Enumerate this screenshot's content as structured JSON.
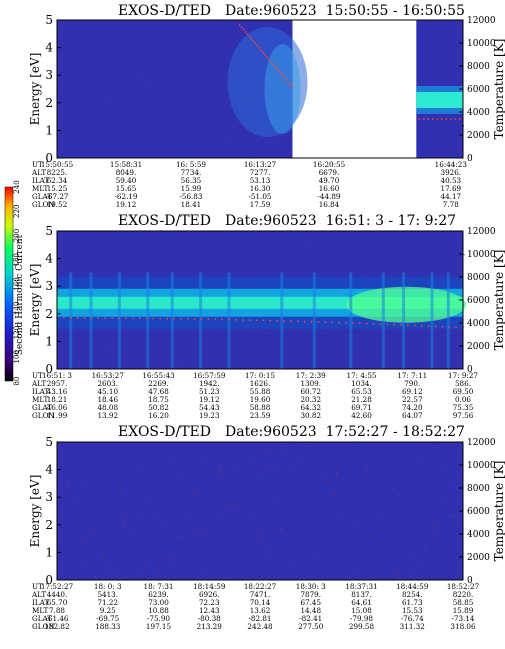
{
  "chart_data": [
    {
      "type": "heatmap",
      "title": "EXOS-D/TED",
      "date_label": "Date:960523",
      "time_range": "15:50:55 - 16:50:55",
      "ylabel": "Energy [eV]",
      "ylabel_right": "Temperature [K]",
      "ylim": [
        0,
        5
      ],
      "ylim_right": [
        0,
        12000
      ],
      "yticks": [
        0,
        1,
        2,
        3,
        4,
        5
      ],
      "yticks_right": [
        0,
        2000,
        4000,
        6000,
        8000,
        10000,
        12000
      ],
      "data_gap": {
        "from": "16:30",
        "to": "16:44"
      },
      "orbit_table": {
        "rows": [
          "UT",
          "ALT",
          "ILAT",
          "MLT",
          "GLAT",
          "GLON"
        ],
        "columns": [
          [
            "15:50:55",
            "8225.",
            "62.34",
            "15.25",
            "-67.27",
            "19.52"
          ],
          [
            "15:58:31",
            "8049.",
            "59.40",
            "15.65",
            "-62.19",
            "19.12"
          ],
          [
            "16: 5:59",
            "7734.",
            "56.35",
            "15.99",
            "-56.83",
            "18.41"
          ],
          [
            "16:13:27",
            "7277.",
            "53.13",
            "16.30",
            "-51.05",
            "17.59"
          ],
          [
            "16:20:55",
            "6679.",
            "49.70",
            "16.60",
            "-44.89",
            "16.84"
          ],
          [
            "16:44:23",
            "3926.",
            "40.53",
            "17.69",
            "44.17",
            "7.78"
          ]
        ]
      }
    },
    {
      "type": "heatmap",
      "title": "EXOS-D/TED",
      "date_label": "Date:960523",
      "time_range": "16:51: 3 - 17: 9:27",
      "ylabel": "Energy [eV]",
      "ylabel_right": "Temperature [K]",
      "ylim": [
        0,
        5
      ],
      "ylim_right": [
        0,
        12000
      ],
      "yticks": [
        0,
        1,
        2,
        3,
        4,
        5
      ],
      "yticks_right": [
        0,
        2000,
        4000,
        6000,
        8000,
        10000,
        12000
      ],
      "orbit_table": {
        "rows": [
          "UT",
          "ALT",
          "ILAT",
          "MLT",
          "GLAT",
          "GLON"
        ],
        "columns": [
          [
            "16:51: 3",
            "2957.",
            "43.16",
            "18.21",
            "46.06",
            "11.99"
          ],
          [
            "16:53:27",
            "2603.",
            "45.10",
            "18.46",
            "48.08",
            "13.92"
          ],
          [
            "16:55:43",
            "2269.",
            "47.68",
            "18.75",
            "50.82",
            "16.20"
          ],
          [
            "16:57:59",
            "1942.",
            "51.23",
            "19.12",
            "54.43",
            "19.23"
          ],
          [
            "17: 0:15",
            "1626.",
            "55.88",
            "19.60",
            "58.88",
            "23.59"
          ],
          [
            "17: 2:39",
            "1309.",
            "60.72",
            "20.32",
            "64.32",
            "30.82"
          ],
          [
            "17: 4:55",
            "1034.",
            "65.53",
            "21.28",
            "69.71",
            "42.60"
          ],
          [
            "17: 7:11",
            "790.",
            "69.12",
            "22.57",
            "74.20",
            "64.07"
          ],
          [
            "17: 9:27",
            "586.",
            "69.50",
            "0.06",
            "75.35",
            "97.56"
          ]
        ]
      }
    },
    {
      "type": "heatmap",
      "title": "EXOS-D/TED",
      "date_label": "Date:960523",
      "time_range": "17:52:27 - 18:52:27",
      "ylabel": "Energy [eV]",
      "ylabel_right": "Temperature [K]",
      "ylim": [
        0,
        5
      ],
      "ylim_right": [
        0,
        12000
      ],
      "yticks": [
        0,
        1,
        2,
        3,
        4,
        5
      ],
      "yticks_right": [
        0,
        2000,
        4000,
        6000,
        8000,
        10000,
        12000
      ],
      "orbit_table": {
        "rows": [
          "UT",
          "ALT",
          "ILAT",
          "MLT",
          "GLAT",
          "GLON"
        ],
        "columns": [
          [
            "17:52:27",
            "4440.",
            "65.70",
            "7.88",
            "-61.46",
            "182.82"
          ],
          [
            "18: 0: 3",
            "5413.",
            "71.22",
            "9.25",
            "-69.75",
            "188.33"
          ],
          [
            "18: 7:31",
            "6239.",
            "73.00",
            "10.88",
            "-75.90",
            "197.15"
          ],
          [
            "18:14:59",
            "6926.",
            "72.23",
            "12.43",
            "-80.38",
            "213.29"
          ],
          [
            "18:22:27",
            "7471.",
            "70.14",
            "13.62",
            "-82.81",
            "242.48"
          ],
          [
            "18:30: 3",
            "7879.",
            "67.45",
            "14.48",
            "-82.41",
            "277.50"
          ],
          [
            "18:37:31",
            "8137.",
            "64.61",
            "15.08",
            "-79.98",
            "299.58"
          ],
          [
            "18:44:59",
            "8254.",
            "61.73",
            "15.53",
            "-76.74",
            "311.32"
          ],
          [
            "18:52:27",
            "8220.",
            "58.85",
            "15.89",
            "-73.14",
            "318.06"
          ]
        ]
      }
    }
  ],
  "colorbar": {
    "label": "Second Harmonic Current",
    "ticks": [
      80,
      100,
      120,
      140,
      160,
      180,
      200,
      220,
      240
    ],
    "range": [
      80,
      240
    ]
  },
  "colors": {
    "background": "#3030b0",
    "low": "#000000",
    "mid": "#00c8ff",
    "high": "#ff0000"
  }
}
